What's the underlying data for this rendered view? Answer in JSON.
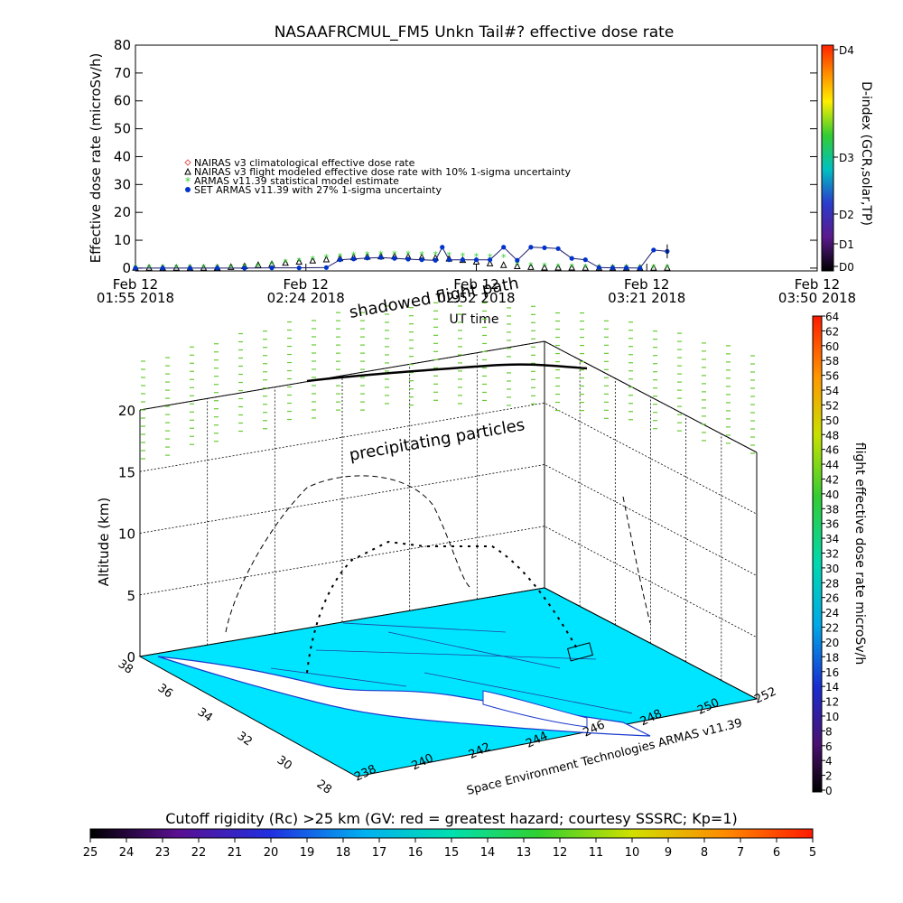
{
  "chart_data": [
    {
      "type": "line",
      "title": "NASAAFRCMUL_FM5 Unkn Tail#? effective dose rate",
      "ylabel": "Effective dose rate (microSv/h)",
      "xlabel": "UT time",
      "ylim": [
        -1,
        80
      ],
      "yticks": [
        0,
        10,
        20,
        30,
        40,
        50,
        60,
        70,
        80
      ],
      "xlim": [
        0,
        1
      ],
      "xticks": [
        {
          "x": 0.0,
          "line1": "Feb 12",
          "line2": "01:55 2018"
        },
        {
          "x": 0.25,
          "line1": "Feb 12",
          "line2": "02:24 2018"
        },
        {
          "x": 0.5,
          "line1": "Feb 12",
          "line2": "02:52 2018"
        },
        {
          "x": 0.75,
          "line1": "Feb 12",
          "line2": "03:21 2018"
        },
        {
          "x": 1.0,
          "line1": "Feb 12",
          "line2": "03:50 2018"
        }
      ],
      "legend": [
        {
          "symbol": "diamond",
          "color": "#e06060",
          "label": "NAIRAS v3 climatological effective dose rate"
        },
        {
          "symbol": "triangle",
          "color": "#000000",
          "label": "NAIRAS v3 flight modeled effective dose rate with 10% 1-sigma uncertainty"
        },
        {
          "symbol": "star",
          "color": "#33cc33",
          "label": "ARMAS v11.39 statistical model estimate"
        },
        {
          "symbol": "circle",
          "color": "#0033cc",
          "label": "SET ARMAS v11.39 with 27% 1-sigma uncertainty"
        }
      ],
      "legend_position": "upper-left",
      "series": [
        {
          "name": "NAIRAS v3 flight modeled effective dose rate with 10% 1-sigma uncertainty",
          "color": "#000000",
          "x": [
            0.0,
            0.02,
            0.04,
            0.06,
            0.08,
            0.1,
            0.12,
            0.14,
            0.16,
            0.18,
            0.2,
            0.22,
            0.24,
            0.26,
            0.28,
            0.3,
            0.32,
            0.34,
            0.36,
            0.38,
            0.4,
            0.42,
            0.44,
            0.46,
            0.48,
            0.5,
            0.52,
            0.54,
            0.56,
            0.58,
            0.6,
            0.62,
            0.64,
            0.66,
            0.68,
            0.7,
            0.72,
            0.74,
            0.76,
            0.78
          ],
          "y": [
            0.2,
            0.2,
            0.2,
            0.2,
            0.2,
            0.2,
            0.3,
            0.5,
            0.8,
            1.2,
            1.5,
            2.0,
            2.4,
            2.8,
            3.2,
            3.6,
            4.0,
            4.2,
            4.3,
            4.3,
            4.2,
            4.0,
            3.8,
            3.5,
            3.0,
            2.4,
            1.8,
            1.2,
            0.8,
            0.5,
            0.3,
            0.3,
            0.3,
            0.2,
            0.2,
            0.2,
            0.2,
            0.2,
            0.2,
            0.2
          ]
        },
        {
          "name": "ARMAS v11.39 statistical model estimate",
          "color": "#33cc33",
          "x": [
            0.0,
            0.02,
            0.04,
            0.06,
            0.08,
            0.1,
            0.12,
            0.14,
            0.16,
            0.18,
            0.2,
            0.22,
            0.24,
            0.26,
            0.28,
            0.3,
            0.32,
            0.34,
            0.36,
            0.38,
            0.4,
            0.42,
            0.44,
            0.46,
            0.48,
            0.5,
            0.52,
            0.54,
            0.56,
            0.58,
            0.6,
            0.62,
            0.64,
            0.66,
            0.68,
            0.7,
            0.72,
            0.74,
            0.76,
            0.78
          ],
          "y": [
            0.1,
            0.1,
            0.1,
            0.1,
            0.1,
            0.1,
            0.1,
            0.2,
            0.4,
            0.7,
            1.2,
            2.0,
            2.6,
            3.2,
            3.8,
            4.2,
            4.6,
            4.8,
            5.0,
            5.0,
            5.0,
            4.9,
            4.8,
            4.6,
            4.4,
            4.2,
            4.0,
            3.8,
            1.2,
            1.0,
            0.8,
            0.5,
            0.4,
            0.3,
            0.2,
            0.2,
            0.2,
            0.2,
            0.2,
            0.2
          ]
        },
        {
          "name": "SET ARMAS v11.39 with 27% 1-sigma uncertainty",
          "color": "#0033cc",
          "x": [
            0.0,
            0.04,
            0.08,
            0.12,
            0.16,
            0.2,
            0.24,
            0.28,
            0.3,
            0.32,
            0.34,
            0.36,
            0.38,
            0.4,
            0.42,
            0.44,
            0.45,
            0.46,
            0.48,
            0.5,
            0.52,
            0.54,
            0.56,
            0.58,
            0.6,
            0.62,
            0.64,
            0.66,
            0.68,
            0.7,
            0.72,
            0.74,
            0.76,
            0.78
          ],
          "y": [
            0.0,
            0.0,
            0.0,
            0.0,
            0.0,
            0.1,
            0.1,
            0.2,
            3.0,
            3.3,
            3.6,
            3.8,
            3.5,
            3.2,
            3.0,
            2.8,
            7.5,
            3.0,
            3.0,
            3.0,
            3.0,
            7.5,
            2.8,
            7.5,
            7.3,
            7.0,
            3.5,
            3.0,
            0.2,
            0.1,
            0.1,
            0.0,
            6.5,
            6.0
          ]
        }
      ],
      "right_colorbar": {
        "label": "D-index (GCR,solar,TP)",
        "ticks": [
          "D0",
          "D1",
          "D2",
          "D3",
          "D4"
        ]
      }
    },
    {
      "type": "scatter",
      "subtype": "3d-trajectory",
      "zlabel": "Altitude (km)",
      "zticks": [
        0,
        5,
        10,
        15,
        20
      ],
      "xticks": [
        238,
        240,
        242,
        244,
        246,
        248,
        250,
        252
      ],
      "yticks": [
        28,
        30,
        32,
        34,
        36,
        38
      ],
      "annotations": [
        "shadowed flight path",
        "precipitating particles"
      ],
      "credit": "Space Environment Technologies ARMAS v11.39",
      "colorbar": {
        "label": "flight effective dose rate microSv/h",
        "ticks": [
          0,
          2,
          4,
          6,
          8,
          10,
          12,
          14,
          16,
          18,
          20,
          22,
          24,
          26,
          28,
          30,
          32,
          34,
          36,
          38,
          40,
          42,
          44,
          46,
          48,
          50,
          52,
          54,
          56,
          58,
          60,
          62,
          64
        ]
      },
      "map_fill_color": "#00e5ff",
      "particle_color": "#66cc33"
    }
  ],
  "bottom_colorbar": {
    "label": "Cutoff rigidity (Rc) >25 km (GV: red = greatest hazard; courtesy SSSRC; Kp=1)",
    "ticks": [
      "25",
      "24",
      "23",
      "22",
      "21",
      "20",
      "19",
      "18",
      "17",
      "16",
      "15",
      "14",
      "13",
      "12",
      "11",
      "10",
      "9",
      "8",
      "7",
      "6",
      "5"
    ]
  }
}
